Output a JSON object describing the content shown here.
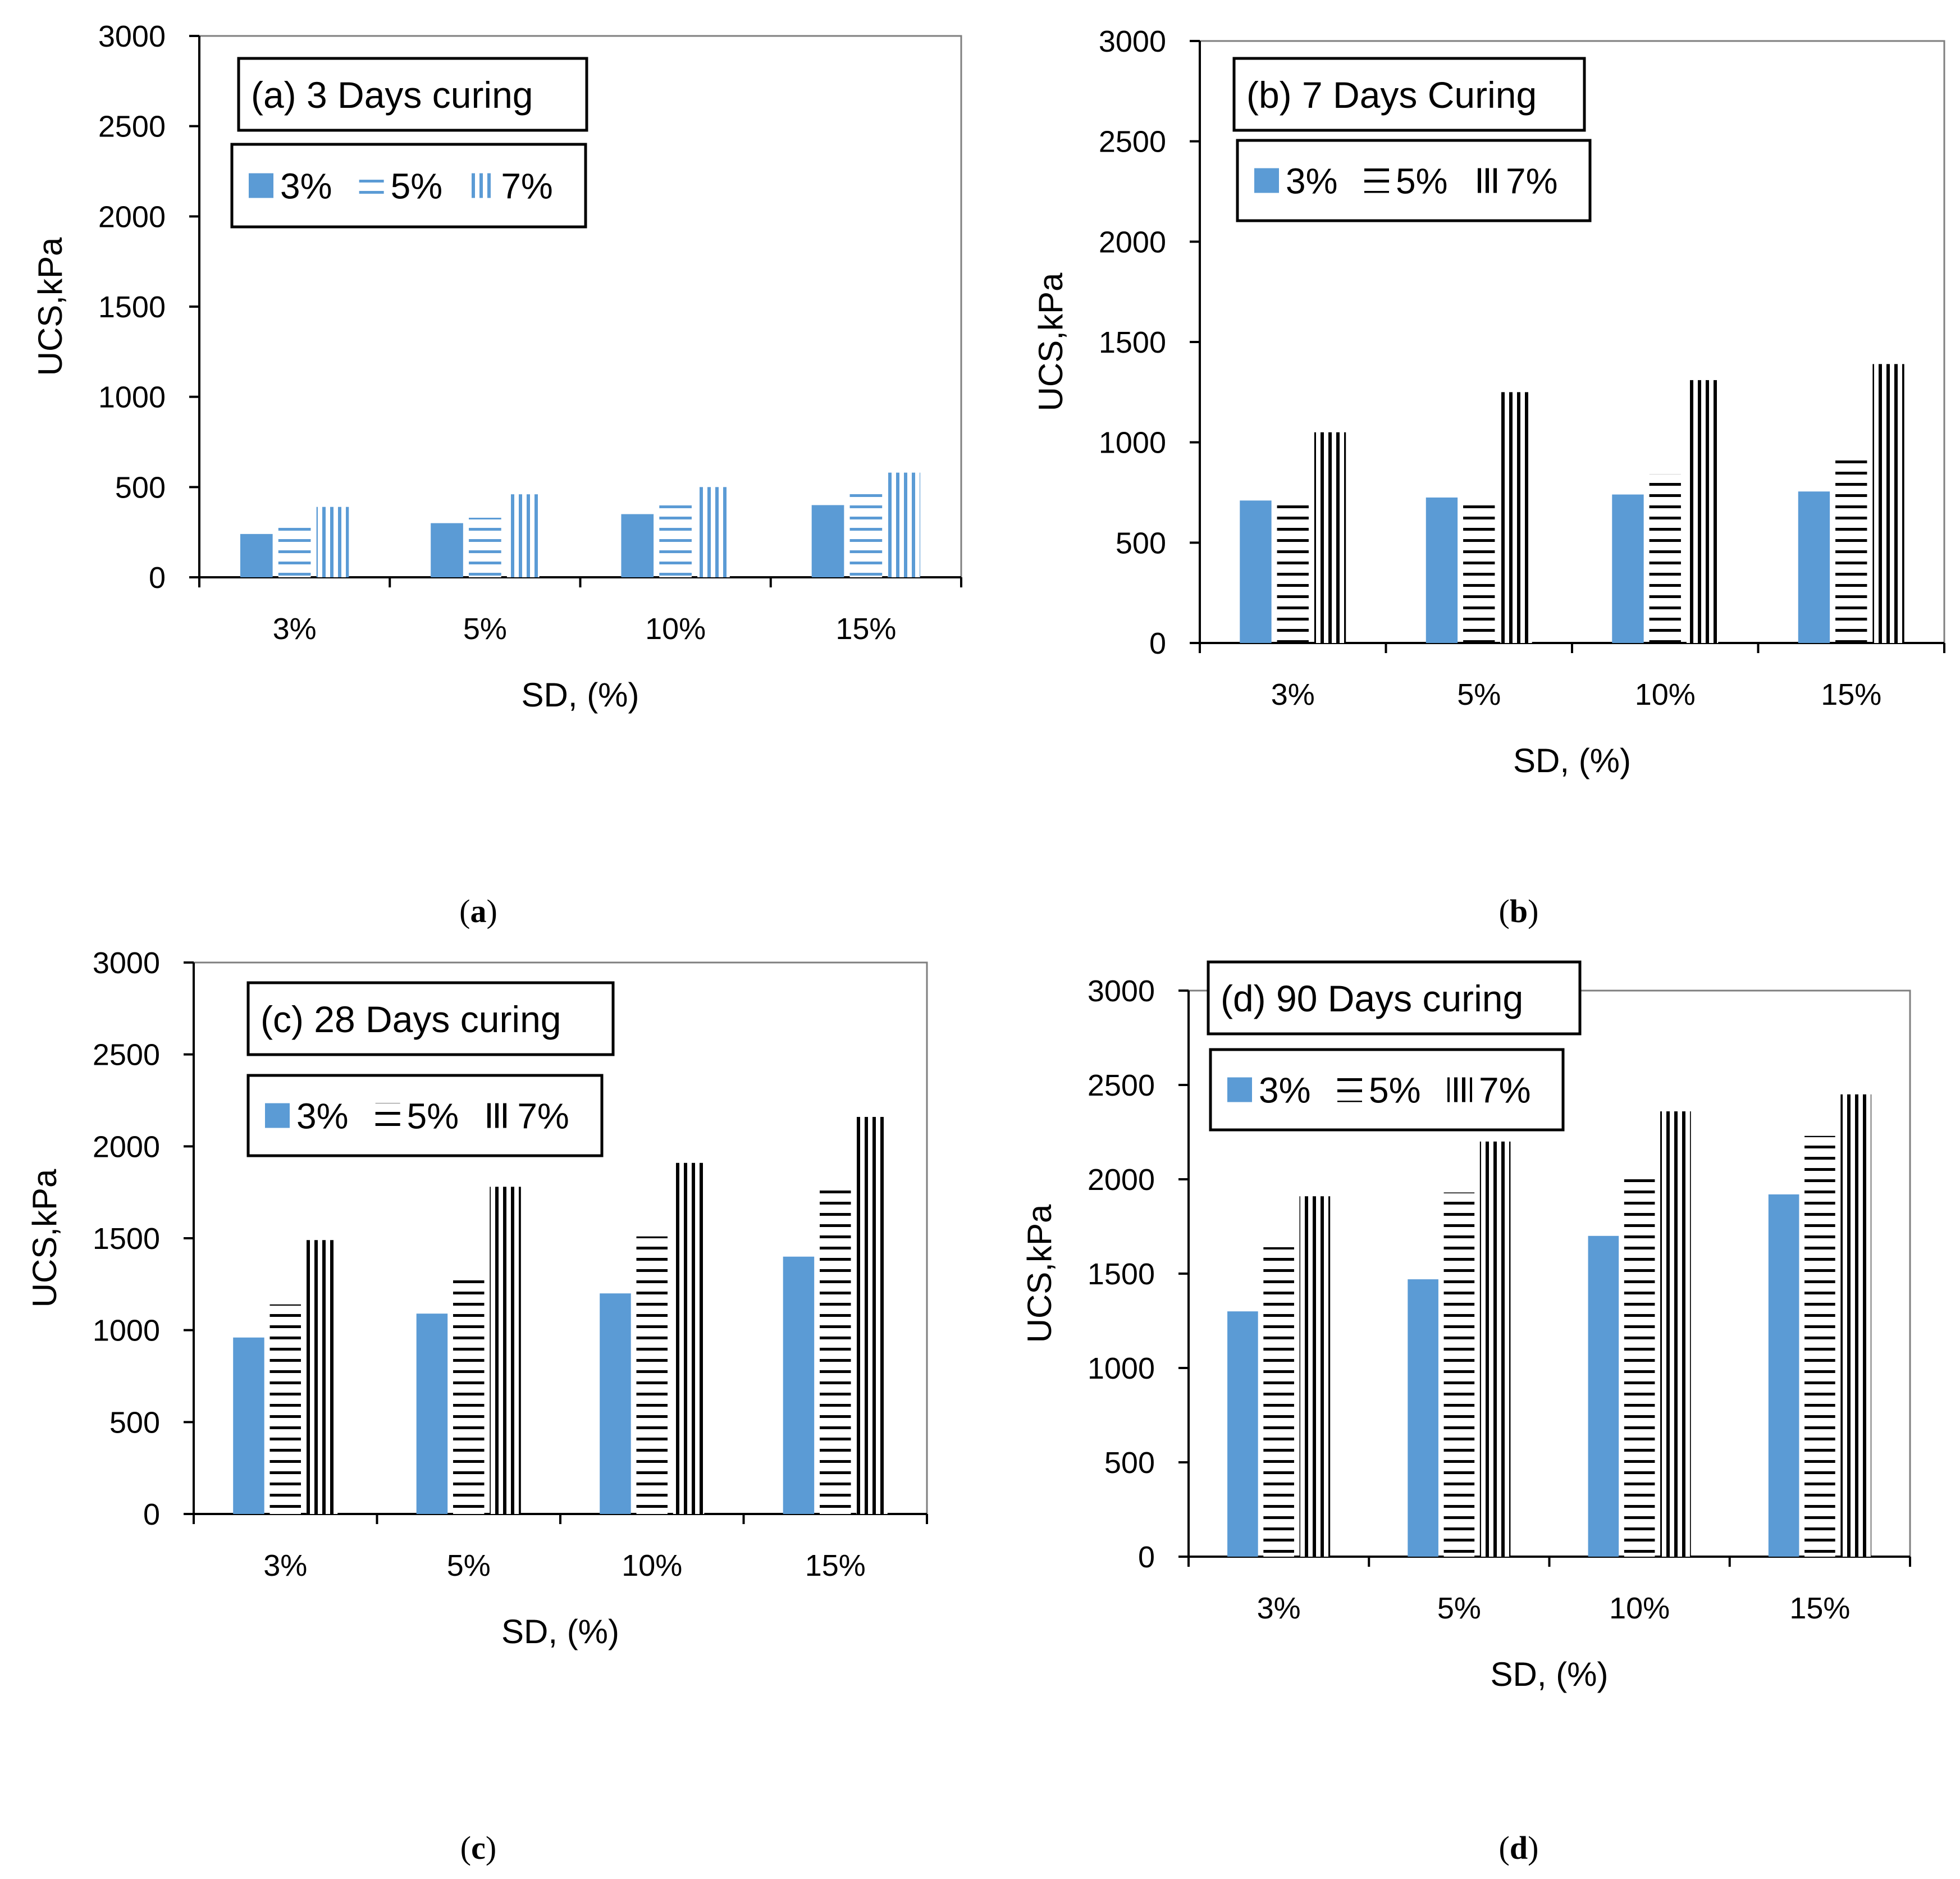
{
  "caption_open": "(",
  "caption_close": ")",
  "chart_data": [
    {
      "type": "bar",
      "panel_label": "a",
      "title": "(a) 3 Days curing",
      "xlabel": "SD, (%)",
      "ylabel": "UCS,kPa",
      "ylim": [
        0,
        3000
      ],
      "yticks": [
        0,
        500,
        1000,
        1500,
        2000,
        2500,
        3000
      ],
      "categories": [
        "3%",
        "5%",
        "10%",
        "15%"
      ],
      "legend_position": "top-left",
      "grid": false,
      "colors": {
        "fill": "#5b9bd5",
        "pattern": "#5b9bd5"
      },
      "series": [
        {
          "name": "3%",
          "style": "solid",
          "values": [
            240,
            300,
            350,
            400
          ]
        },
        {
          "name": "5%",
          "style": "horizontal-lines",
          "values": [
            320,
            330,
            400,
            470
          ]
        },
        {
          "name": "7%",
          "style": "vertical-lines",
          "values": [
            390,
            460,
            500,
            580
          ]
        }
      ]
    },
    {
      "type": "bar",
      "panel_label": "b",
      "title": "(b) 7 Days Curing",
      "xlabel": "SD, (%)",
      "ylabel": "UCS,kPa",
      "ylim": [
        0,
        3000
      ],
      "yticks": [
        0,
        500,
        1000,
        1500,
        2000,
        2500,
        3000
      ],
      "categories": [
        "3%",
        "5%",
        "10%",
        "15%"
      ],
      "legend_position": "top-left",
      "grid": false,
      "colors": {
        "fill": "#5b9bd5",
        "pattern": "#000000"
      },
      "series": [
        {
          "name": "3%",
          "style": "solid",
          "values": [
            710,
            725,
            740,
            755
          ]
        },
        {
          "name": "5%",
          "style": "horizontal-lines",
          "values": [
            700,
            700,
            840,
            910
          ]
        },
        {
          "name": "7%",
          "style": "vertical-lines",
          "values": [
            1050,
            1250,
            1310,
            1390
          ]
        }
      ]
    },
    {
      "type": "bar",
      "panel_label": "c",
      "title": "(c) 28 Days curing",
      "xlabel": "SD, (%)",
      "ylabel": "UCS,kPa",
      "ylim": [
        0,
        3000
      ],
      "yticks": [
        0,
        500,
        1000,
        1500,
        2000,
        2500,
        3000
      ],
      "categories": [
        "3%",
        "5%",
        "10%",
        "15%"
      ],
      "legend_position": "top-left",
      "grid": false,
      "colors": {
        "fill": "#5b9bd5",
        "pattern": "#000000"
      },
      "series": [
        {
          "name": "3%",
          "style": "solid",
          "values": [
            960,
            1090,
            1200,
            1400
          ]
        },
        {
          "name": "5%",
          "style": "horizontal-lines",
          "values": [
            1140,
            1300,
            1510,
            1760
          ]
        },
        {
          "name": "7%",
          "style": "vertical-lines",
          "values": [
            1490,
            1780,
            1910,
            2160
          ]
        }
      ]
    },
    {
      "type": "bar",
      "panel_label": "d",
      "title": "(d) 90 Days curing",
      "xlabel": "SD, (%)",
      "ylabel": "UCS,kPa",
      "ylim": [
        0,
        3000
      ],
      "yticks": [
        0,
        500,
        1000,
        1500,
        2000,
        2500,
        3000
      ],
      "categories": [
        "3%",
        "5%",
        "10%",
        "15%"
      ],
      "legend_position": "top-left",
      "grid": false,
      "colors": {
        "fill": "#5b9bd5",
        "pattern": "#000000"
      },
      "series": [
        {
          "name": "3%",
          "style": "solid",
          "values": [
            1300,
            1470,
            1700,
            1920
          ]
        },
        {
          "name": "5%",
          "style": "horizontal-lines",
          "values": [
            1640,
            1930,
            2010,
            2230
          ]
        },
        {
          "name": "7%",
          "style": "vertical-lines",
          "values": [
            1910,
            2200,
            2360,
            2450
          ]
        }
      ]
    }
  ]
}
